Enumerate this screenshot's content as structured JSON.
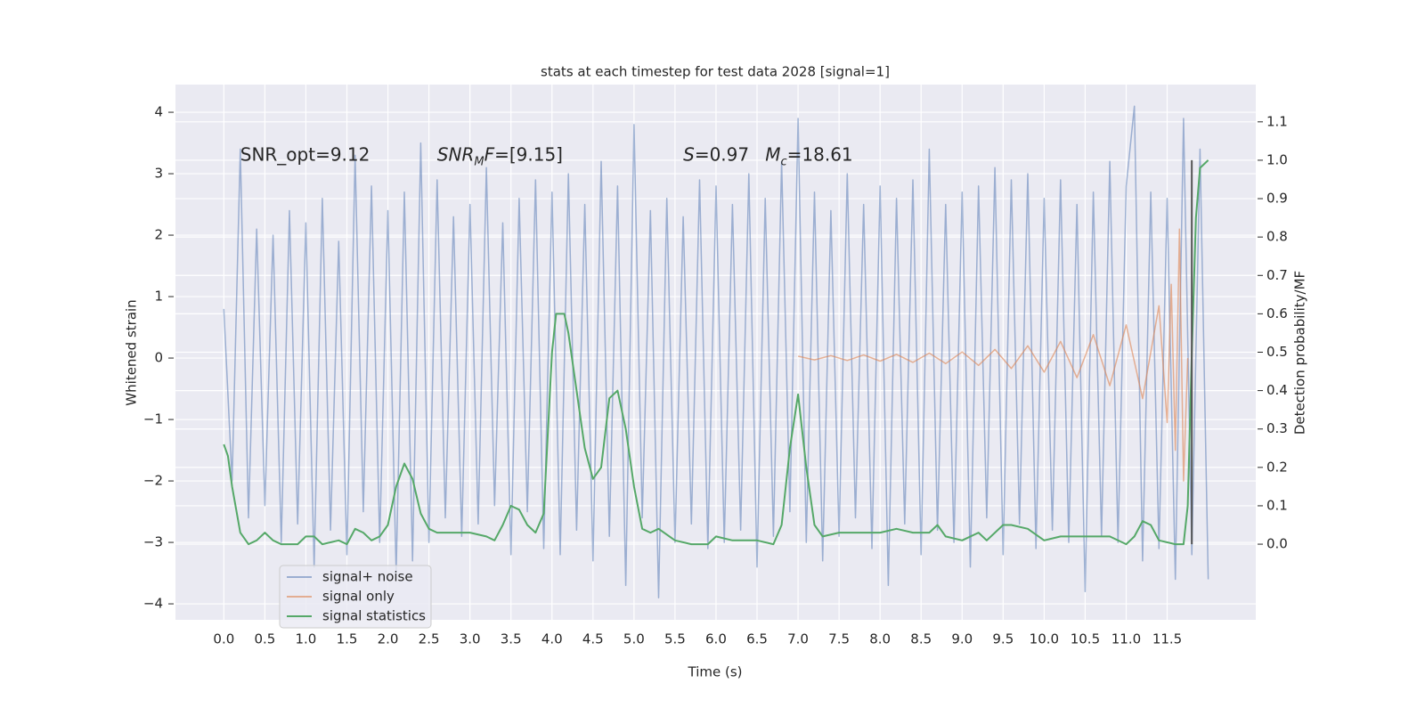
{
  "chart_data": {
    "type": "line",
    "title": "stats at each timestep for test data 2028 [signal=1]",
    "xlabel": "Time (s)",
    "ylabel": "Whitened strain",
    "y2label": "Detection probability/MF",
    "xlim": [
      -0.59,
      12.58
    ],
    "ylim": [
      -4.26,
      4.45
    ],
    "y2lim": [
      -0.197,
      1.197
    ],
    "xticks": [
      {
        "value": 0,
        "label": "0.0"
      },
      {
        "value": 0.5,
        "label": "0.5"
      },
      {
        "value": 1,
        "label": "1.0"
      },
      {
        "value": 1.5,
        "label": "1.5"
      },
      {
        "value": 2,
        "label": "2.0"
      },
      {
        "value": 2.5,
        "label": "2.5"
      },
      {
        "value": 3,
        "label": "3.0"
      },
      {
        "value": 3.5,
        "label": "3.5"
      },
      {
        "value": 4,
        "label": "4.0"
      },
      {
        "value": 4.5,
        "label": "4.5"
      },
      {
        "value": 5,
        "label": "5.0"
      },
      {
        "value": 5.5,
        "label": "5.5"
      },
      {
        "value": 6,
        "label": "6.0"
      },
      {
        "value": 6.5,
        "label": "6.5"
      },
      {
        "value": 7,
        "label": "7.0"
      },
      {
        "value": 7.5,
        "label": "7.5"
      },
      {
        "value": 8,
        "label": "8.0"
      },
      {
        "value": 8.5,
        "label": "8.5"
      },
      {
        "value": 9,
        "label": "9.0"
      },
      {
        "value": 9.5,
        "label": "9.5"
      },
      {
        "value": 10,
        "label": "10.0"
      },
      {
        "value": 10.5,
        "label": "10.5"
      },
      {
        "value": 11,
        "label": "11.0"
      },
      {
        "value": 11.5,
        "label": "11.5"
      }
    ],
    "yticks": [
      {
        "value": -4,
        "label": "−4"
      },
      {
        "value": -3,
        "label": "−3"
      },
      {
        "value": -2,
        "label": "−2"
      },
      {
        "value": -1,
        "label": "−1"
      },
      0,
      1,
      2,
      3,
      4
    ],
    "y2ticks": [
      {
        "value": 0,
        "label": "0.0"
      },
      0.1,
      0.2,
      0.3,
      0.4,
      0.5,
      0.6,
      0.7,
      0.8,
      0.9,
      {
        "value": 1,
        "label": "1.0"
      },
      1.1
    ],
    "grid": true,
    "legend": "lower left",
    "series": [
      {
        "name": "signal+ noise",
        "color": "#4c72b0",
        "opacity": 0.5,
        "x": [
          0.0,
          0.1,
          0.2,
          0.3,
          0.4,
          0.5,
          0.6,
          0.7,
          0.8,
          0.9,
          1.0,
          1.1,
          1.2,
          1.3,
          1.4,
          1.5,
          1.6,
          1.7,
          1.8,
          1.9,
          2.0,
          2.1,
          2.2,
          2.3,
          2.4,
          2.5,
          2.6,
          2.7,
          2.8,
          2.9,
          3.0,
          3.1,
          3.2,
          3.3,
          3.4,
          3.5,
          3.6,
          3.7,
          3.8,
          3.9,
          4.0,
          4.1,
          4.2,
          4.3,
          4.4,
          4.5,
          4.6,
          4.7,
          4.8,
          4.9,
          5.0,
          5.1,
          5.2,
          5.3,
          5.4,
          5.5,
          5.6,
          5.7,
          5.8,
          5.9,
          6.0,
          6.1,
          6.2,
          6.3,
          6.4,
          6.5,
          6.6,
          6.7,
          6.8,
          6.9,
          7.0,
          7.1,
          7.2,
          7.3,
          7.4,
          7.5,
          7.6,
          7.7,
          7.8,
          7.9,
          8.0,
          8.1,
          8.2,
          8.3,
          8.4,
          8.5,
          8.6,
          8.7,
          8.8,
          8.9,
          9.0,
          9.1,
          9.2,
          9.3,
          9.4,
          9.5,
          9.6,
          9.7,
          9.8,
          9.9,
          10.0,
          10.1,
          10.2,
          10.3,
          10.4,
          10.5,
          10.6,
          10.7,
          10.8,
          10.9,
          11.0,
          11.1,
          11.2,
          11.3,
          11.4,
          11.5,
          11.6,
          11.7,
          11.8,
          11.9,
          12.0
        ],
        "values": [
          0.8,
          -2.0,
          3.4,
          -2.6,
          2.1,
          -2.4,
          2.0,
          -3.0,
          2.4,
          -2.7,
          2.2,
          -3.4,
          2.6,
          -2.8,
          1.9,
          -3.2,
          3.3,
          -2.5,
          2.8,
          -3.0,
          2.4,
          -3.5,
          2.7,
          -3.3,
          3.5,
          -3.0,
          2.9,
          -2.6,
          2.3,
          -2.9,
          2.5,
          -2.7,
          3.1,
          -2.4,
          2.2,
          -3.2,
          2.6,
          -2.5,
          2.9,
          -3.1,
          2.7,
          -3.2,
          3.0,
          -2.8,
          2.5,
          -3.3,
          3.2,
          -2.9,
          2.8,
          -3.7,
          3.8,
          -2.6,
          2.4,
          -3.9,
          2.6,
          -3.0,
          2.3,
          -2.7,
          2.9,
          -3.1,
          2.8,
          -3.0,
          2.5,
          -2.8,
          3.0,
          -3.4,
          2.6,
          -2.9,
          3.2,
          -2.5,
          3.9,
          -3.0,
          2.7,
          -3.3,
          2.4,
          -2.9,
          3.0,
          -2.6,
          2.5,
          -3.1,
          2.8,
          -3.7,
          2.6,
          -2.7,
          2.9,
          -3.2,
          3.4,
          -2.8,
          2.5,
          -3.0,
          2.7,
          -3.4,
          2.8,
          -2.6,
          3.1,
          -3.2,
          2.9,
          -2.7,
          3.0,
          -3.1,
          2.6,
          -2.8,
          2.9,
          -3.0,
          2.5,
          -3.8,
          2.7,
          -2.9,
          3.2,
          -3.0,
          2.8,
          4.1,
          -3.3,
          2.7,
          -3.1,
          2.6,
          -3.6,
          3.9,
          -3.2,
          3.4,
          -3.6
        ]
      },
      {
        "name": "signal only",
        "color": "#dd8452",
        "opacity": 0.6,
        "x": [
          7.0,
          7.2,
          7.4,
          7.6,
          7.8,
          8.0,
          8.2,
          8.4,
          8.6,
          8.8,
          9.0,
          9.2,
          9.4,
          9.6,
          9.8,
          10.0,
          10.2,
          10.4,
          10.6,
          10.8,
          11.0,
          11.2,
          11.4,
          11.5,
          11.55,
          11.6,
          11.65,
          11.7,
          11.75
        ],
        "values": [
          0.03,
          -0.03,
          0.04,
          -0.04,
          0.05,
          -0.05,
          0.06,
          -0.07,
          0.08,
          -0.09,
          0.1,
          -0.12,
          0.14,
          -0.17,
          0.2,
          -0.23,
          0.27,
          -0.32,
          0.38,
          -0.45,
          0.54,
          -0.66,
          0.85,
          -1.05,
          1.2,
          -1.5,
          2.1,
          -2.0,
          0.0
        ]
      },
      {
        "name": "signal statistics",
        "color": "#55a868",
        "opacity": 1,
        "axis": "y2",
        "x": [
          0.0,
          0.05,
          0.1,
          0.2,
          0.3,
          0.4,
          0.5,
          0.6,
          0.7,
          0.8,
          0.9,
          1.0,
          1.1,
          1.2,
          1.4,
          1.5,
          1.6,
          1.7,
          1.8,
          1.9,
          2.0,
          2.1,
          2.2,
          2.3,
          2.4,
          2.5,
          2.6,
          2.8,
          3.0,
          3.2,
          3.3,
          3.4,
          3.5,
          3.6,
          3.7,
          3.8,
          3.9,
          4.0,
          4.05,
          4.15,
          4.2,
          4.3,
          4.4,
          4.5,
          4.6,
          4.7,
          4.8,
          4.9,
          5.0,
          5.1,
          5.2,
          5.3,
          5.5,
          5.7,
          5.9,
          6.0,
          6.2,
          6.5,
          6.7,
          6.8,
          6.9,
          7.0,
          7.1,
          7.2,
          7.3,
          7.5,
          7.7,
          7.9,
          8.0,
          8.2,
          8.4,
          8.6,
          8.7,
          8.8,
          9.0,
          9.2,
          9.3,
          9.5,
          9.6,
          9.8,
          10.0,
          10.2,
          10.4,
          10.6,
          10.8,
          11.0,
          11.1,
          11.2,
          11.3,
          11.4,
          11.6,
          11.7,
          11.75,
          11.8,
          11.85,
          11.9,
          12.0
        ],
        "values": [
          0.26,
          0.23,
          0.15,
          0.03,
          0.0,
          0.01,
          0.03,
          0.01,
          0.0,
          0.0,
          0.0,
          0.02,
          0.02,
          0.0,
          0.01,
          0.0,
          0.04,
          0.03,
          0.01,
          0.02,
          0.05,
          0.15,
          0.21,
          0.17,
          0.08,
          0.04,
          0.03,
          0.03,
          0.03,
          0.02,
          0.01,
          0.05,
          0.1,
          0.09,
          0.05,
          0.03,
          0.08,
          0.5,
          0.6,
          0.6,
          0.55,
          0.4,
          0.25,
          0.17,
          0.2,
          0.38,
          0.4,
          0.3,
          0.15,
          0.04,
          0.03,
          0.04,
          0.01,
          0.0,
          0.0,
          0.02,
          0.01,
          0.01,
          0.0,
          0.05,
          0.25,
          0.39,
          0.2,
          0.05,
          0.02,
          0.03,
          0.03,
          0.03,
          0.03,
          0.04,
          0.03,
          0.03,
          0.05,
          0.02,
          0.01,
          0.03,
          0.01,
          0.05,
          0.05,
          0.04,
          0.01,
          0.02,
          0.02,
          0.02,
          0.02,
          0.0,
          0.02,
          0.06,
          0.05,
          0.01,
          0.0,
          0.0,
          0.1,
          0.5,
          0.85,
          0.98,
          1.0
        ]
      }
    ],
    "vline": {
      "x": 11.8,
      "y2": [
        0,
        1
      ],
      "color": "#555555"
    },
    "annotations": [
      {
        "x": 0.2,
        "y": 3.3,
        "parts": [
          {
            "text": "SNR_opt=9.12"
          }
        ]
      },
      {
        "x": 2.6,
        "y": 3.3,
        "parts": [
          {
            "text": "SNR",
            "italic": true
          },
          {
            "text": "M",
            "italic": true,
            "sub": true
          },
          {
            "text": "F",
            "italic": true
          },
          {
            "text": "=[9.15]"
          }
        ]
      },
      {
        "x": 5.6,
        "y": 3.3,
        "parts": [
          {
            "text": "S",
            "italic": true
          },
          {
            "text": "=0.97"
          }
        ]
      },
      {
        "x": 6.6,
        "y": 3.3,
        "parts": [
          {
            "text": "M",
            "italic": true
          },
          {
            "text": "c",
            "italic": true,
            "sub": true
          },
          {
            "text": "=18.61"
          }
        ]
      }
    ]
  }
}
